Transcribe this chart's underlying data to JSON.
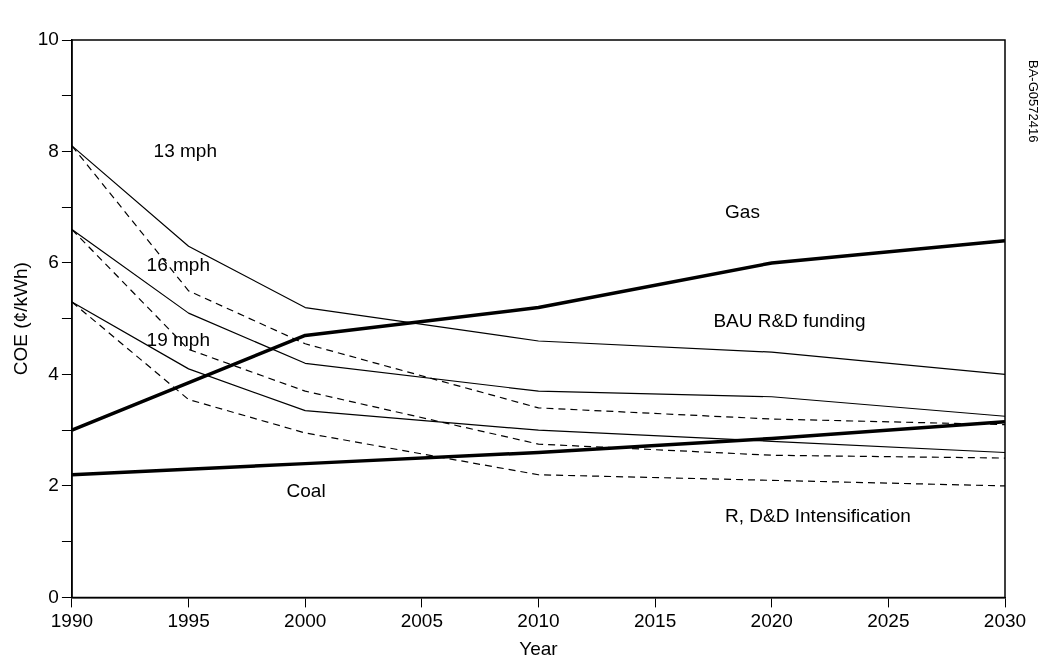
{
  "chart_data": {
    "type": "line",
    "xlabel": "Year",
    "ylabel": "COE (¢/kWh)",
    "x": [
      1990,
      1995,
      2000,
      2010,
      2020,
      2030
    ],
    "series": [
      {
        "color": "#000000",
        "values": [
          3.0,
          null,
          4.7,
          5.2,
          6.0,
          6.4
        ]
      },
      {
        "color": "#000000",
        "values": [
          2.2,
          null,
          2.4,
          2.6,
          2.85,
          3.15
        ]
      },
      {
        "color": "#000000",
        "values": [
          8.1,
          6.3,
          5.2,
          4.6,
          4.4,
          4.0
        ]
      },
      {
        "color": "#000000",
        "values": [
          6.6,
          5.1,
          4.2,
          3.7,
          3.6,
          3.25
        ]
      },
      {
        "color": "#000000",
        "values": [
          5.3,
          4.1,
          3.35,
          3.0,
          2.8,
          2.6
        ]
      },
      {
        "color": "#000000",
        "line_style": "dashed",
        "values": [
          8.1,
          5.5,
          4.55,
          3.4,
          3.2,
          3.1
        ]
      },
      {
        "color": "#000000",
        "line_style": "dashed",
        "values": [
          6.6,
          4.45,
          3.7,
          2.75,
          2.55,
          2.5
        ]
      },
      {
        "color": "#000000",
        "line_style": "dashed",
        "values": [
          5.3,
          3.55,
          2.95,
          2.2,
          2.1,
          2.0
        ]
      }
    ],
    "xlim": [
      1990,
      2030
    ],
    "xticks": [
      1990,
      1995,
      2000,
      2005,
      2010,
      2015,
      2020,
      2025,
      2030
    ],
    "ylim": [
      0,
      10
    ],
    "yticks": [
      0,
      {
        "value": 1,
        "label": null
      },
      2,
      {
        "value": 3,
        "label": null
      },
      4,
      {
        "value": 5,
        "label": null
      },
      6,
      {
        "value": 7,
        "label": null
      },
      8,
      {
        "value": 9,
        "label": null
      },
      10
    ],
    "grid": false,
    "legend": false,
    "marker": "none",
    "line_style": "solid",
    "annotations": [
      "13 mph",
      "16 mph",
      "19 mph",
      "Gas",
      "BAU R&D funding",
      "Coal",
      "R, D&D Intensification",
      "BA-G0572416"
    ]
  }
}
